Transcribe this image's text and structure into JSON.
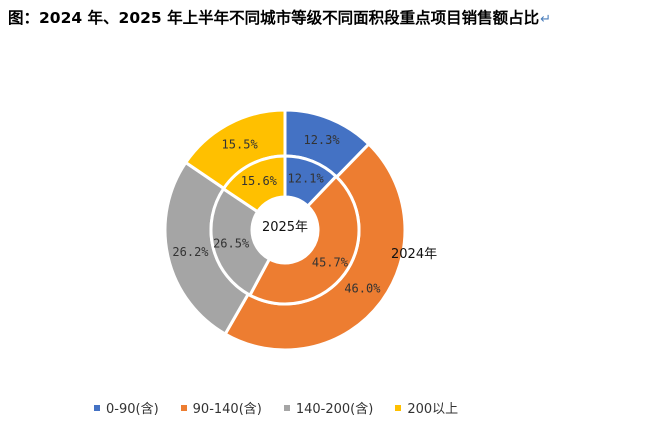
{
  "title": "图：2024 年、2025 年上半年不同城市等级不同面积段重点项目销售额占比",
  "title_mark": "↵",
  "chart_data": {
    "type": "donut",
    "categories": [
      "0-90(含)",
      "90-140(含)",
      "140-200(含)",
      "200以上"
    ],
    "colors": [
      "#4472c4",
      "#ed7d31",
      "#a5a5a5",
      "#ffc000"
    ],
    "series": [
      {
        "name": "2024年",
        "ring": "outer",
        "values": [
          12.3,
          46.0,
          26.2,
          15.5
        ],
        "labels": [
          "12.3%",
          "46.0%",
          "26.2%",
          "15.5%"
        ]
      },
      {
        "name": "2025年",
        "ring": "inner",
        "values": [
          12.1,
          45.7,
          26.5,
          15.6
        ],
        "labels": [
          "12.1%",
          "45.7%",
          "26.5%",
          "15.6%"
        ]
      }
    ],
    "legend_position": "bottom"
  }
}
